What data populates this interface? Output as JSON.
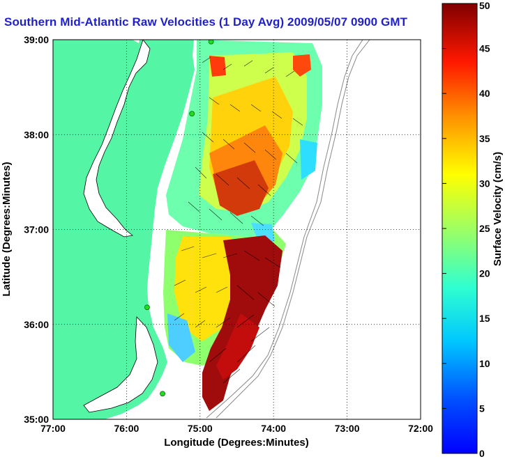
{
  "title": "Southern Mid-Atlantic Raw Velocities (1 Day Avg) 2009/05/07 0900 GMT",
  "map": {
    "x_axis_label": "Longitude (Degrees:Minutes)",
    "y_axis_label": "Latitude (Degrees:Minutes)",
    "x_ticks": [
      "77:00",
      "76:00",
      "75:00",
      "74:00",
      "73:00",
      "72:00"
    ],
    "y_ticks": [
      "39:00",
      "38:00",
      "37:00",
      "36:00",
      "35:00"
    ],
    "lon_range": [
      -77,
      -72
    ],
    "lat_range": [
      35,
      39
    ],
    "grid": "dotted",
    "land_color": "#55f5a6",
    "hf_radar_sites": [
      {
        "lon": -74.85,
        "lat": 38.98
      },
      {
        "lon": -75.11,
        "lat": 38.22
      },
      {
        "lon": -75.72,
        "lat": 36.18
      },
      {
        "lon": -75.51,
        "lat": 35.27
      }
    ]
  },
  "colorbar": {
    "label": "Surface Velocity (cm/s)",
    "min": 0,
    "max": 50,
    "ticks": [
      "0",
      "5",
      "10",
      "15",
      "20",
      "25",
      "30",
      "35",
      "40",
      "45",
      "50"
    ]
  }
}
